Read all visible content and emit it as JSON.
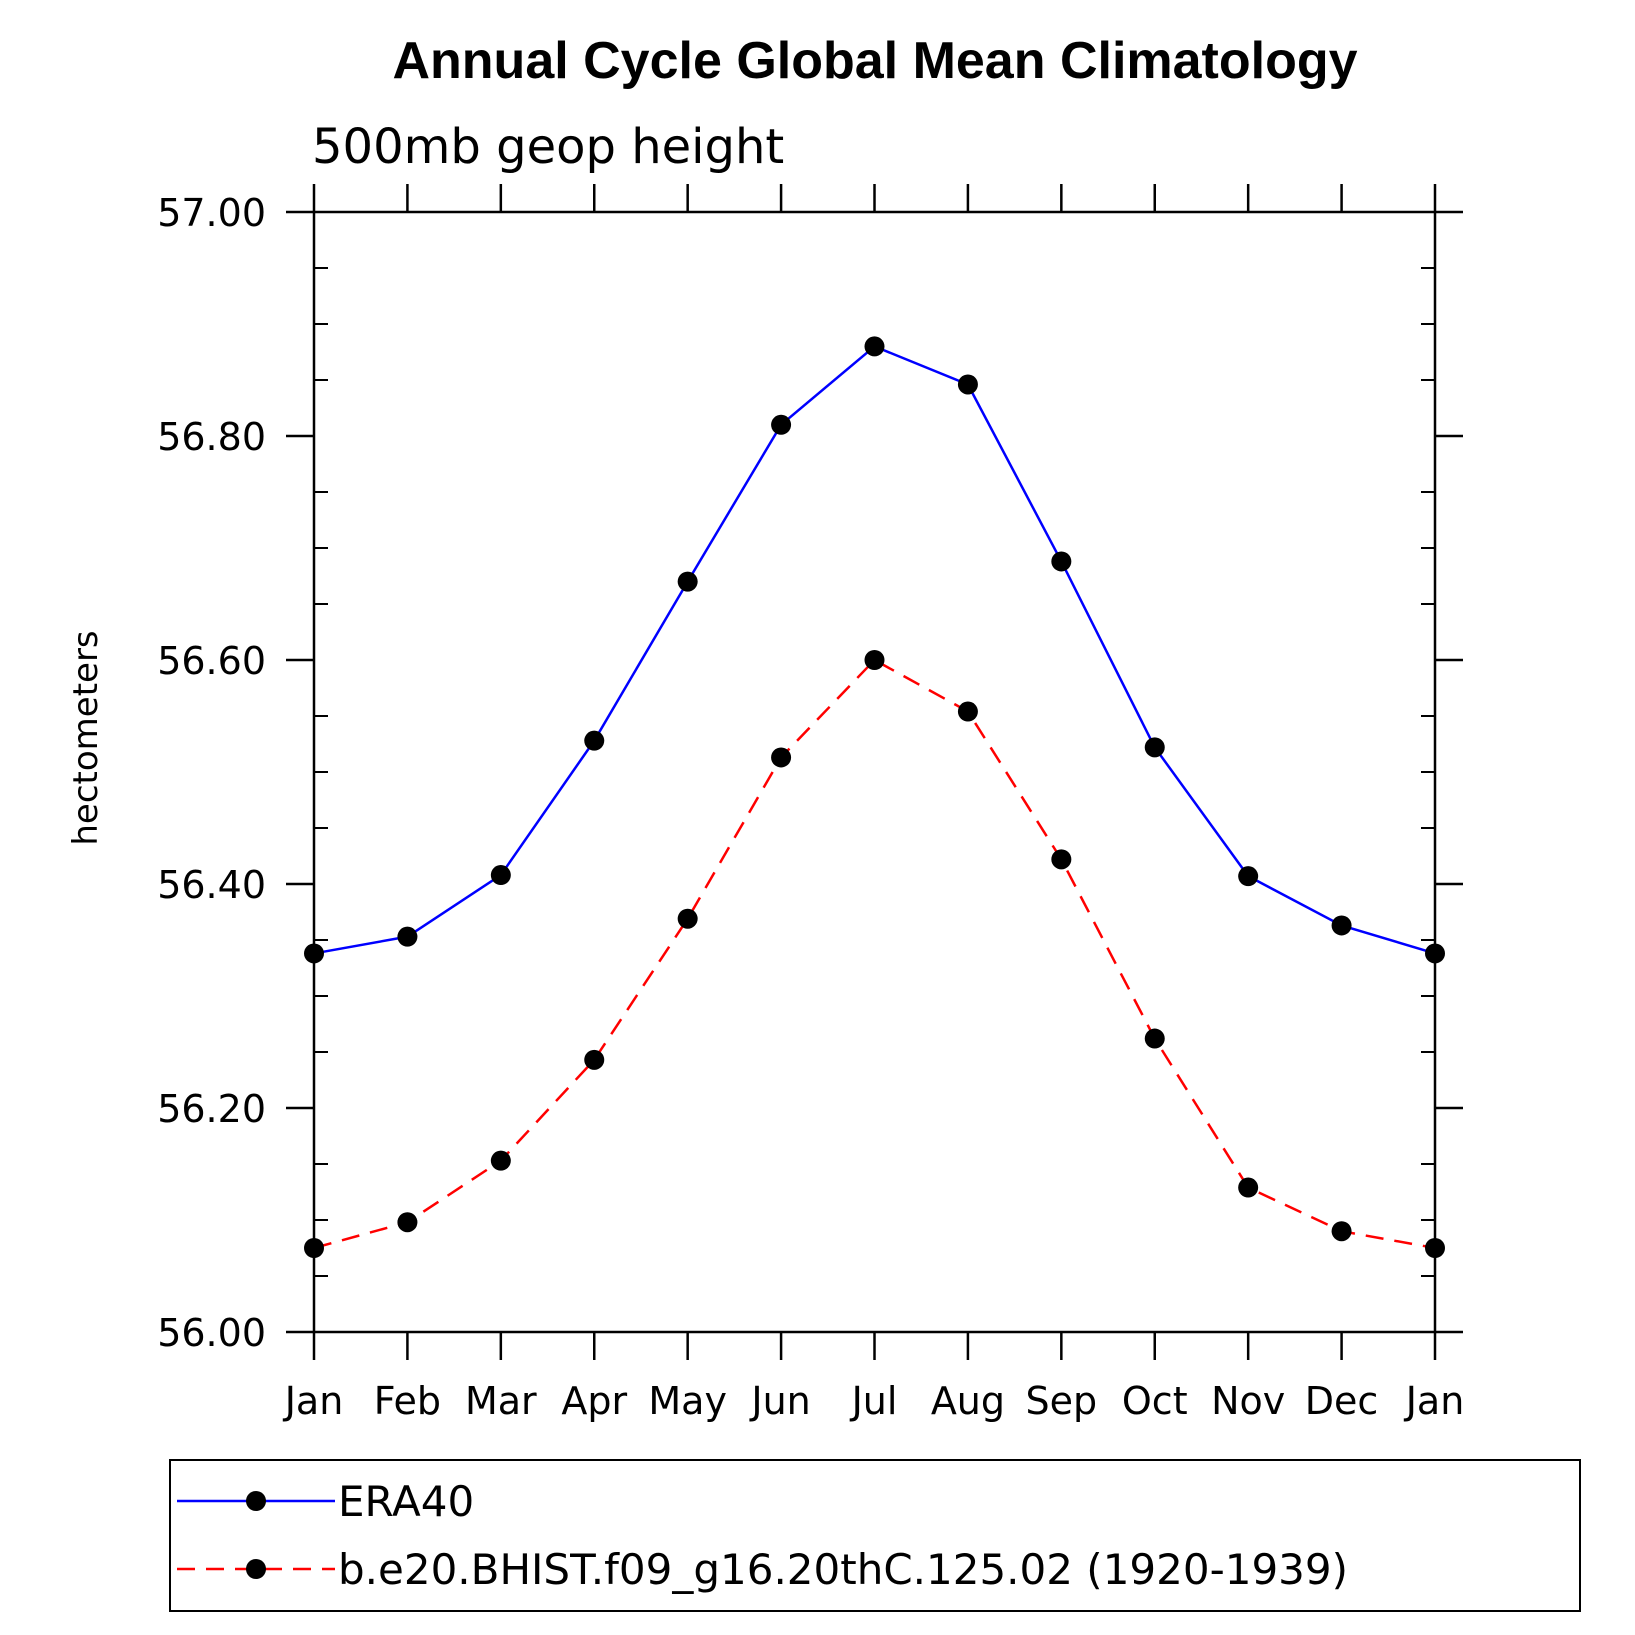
{
  "chart_data": {
    "type": "line",
    "title": "Annual Cycle Global Mean Climatology",
    "subtitle": "500mb geop height",
    "ylabel": "hectometers",
    "xlabel": "",
    "categories": [
      "Jan",
      "Feb",
      "Mar",
      "Apr",
      "May",
      "Jun",
      "Jul",
      "Aug",
      "Sep",
      "Oct",
      "Nov",
      "Dec",
      "Jan"
    ],
    "ylim": [
      56.0,
      57.0
    ],
    "yticks": [
      "56.00",
      "56.20",
      "56.40",
      "56.60",
      "56.80",
      "57.00"
    ],
    "grid": false,
    "legend_position": "bottom",
    "series": [
      {
        "name": "ERA40",
        "color": "#0000ff",
        "dash": "solid",
        "marker": "filled-circle",
        "values": [
          56.338,
          56.353,
          56.408,
          56.528,
          56.67,
          56.81,
          56.88,
          56.846,
          56.688,
          56.522,
          56.407,
          56.363,
          56.338
        ]
      },
      {
        "name": "b.e20.BHIST.f09_g16.20thC.125.02 (1920-1939)",
        "color": "#ff0000",
        "dash": "dashed",
        "marker": "filled-circle",
        "values": [
          56.075,
          56.098,
          56.153,
          56.243,
          56.369,
          56.513,
          56.6,
          56.554,
          56.422,
          56.262,
          56.129,
          56.09,
          56.075
        ]
      }
    ]
  }
}
